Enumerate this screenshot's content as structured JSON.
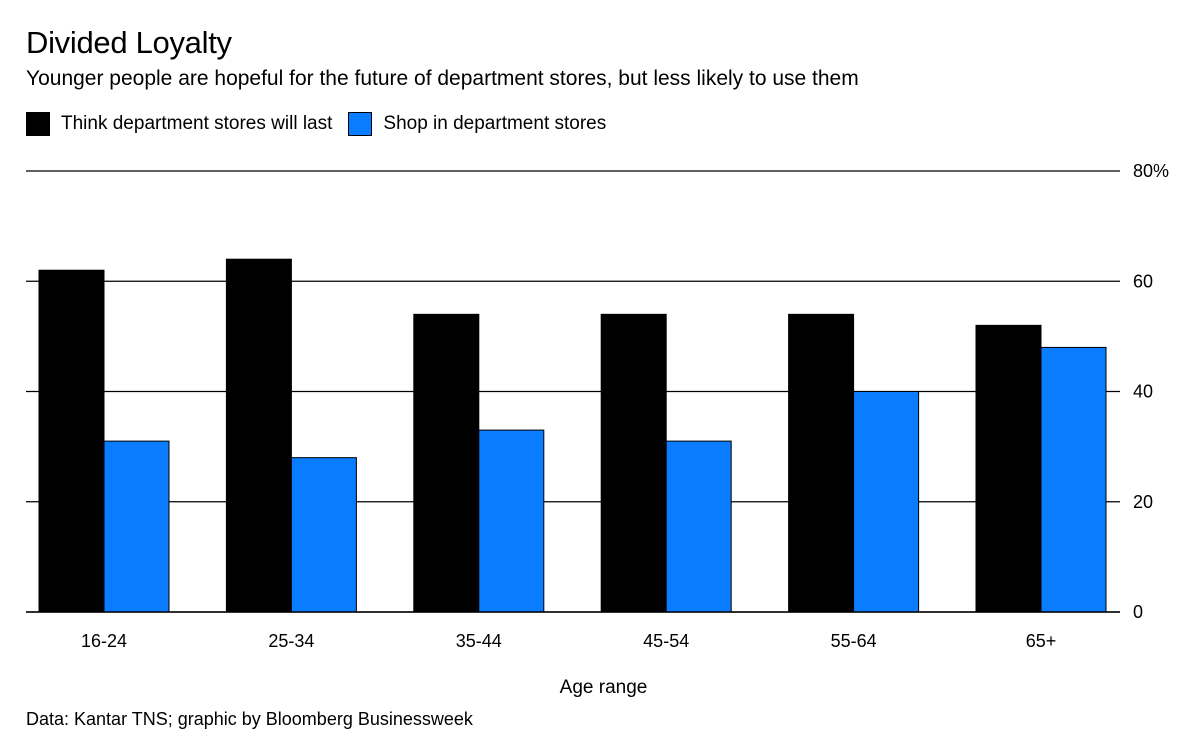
{
  "chart_data": {
    "type": "bar",
    "title": "Divided Loyalty",
    "subtitle": "Younger people are hopeful for the future of department stores, but less likely to use them",
    "categories": [
      "16-24",
      "25-34",
      "35-44",
      "45-54",
      "55-64",
      "65+"
    ],
    "series": [
      {
        "name": "Think department stores will last",
        "color": "#000000",
        "values": [
          62,
          64,
          54,
          54,
          54,
          52
        ]
      },
      {
        "name": "Shop in department stores",
        "color": "#0A7CFF",
        "values": [
          31,
          28,
          33,
          31,
          40,
          48
        ]
      }
    ],
    "xlabel": "Age range",
    "ylabel": "",
    "ylim": [
      0,
      80
    ],
    "yticks": [
      0,
      20,
      40,
      60,
      80
    ],
    "ytick_labels": [
      "0",
      "20",
      "40",
      "60",
      "80%"
    ],
    "grid": true,
    "legend_position": "top-left",
    "y_axis_side": "right",
    "source": "Data: Kantar TNS; graphic by Bloomberg Businessweek"
  }
}
